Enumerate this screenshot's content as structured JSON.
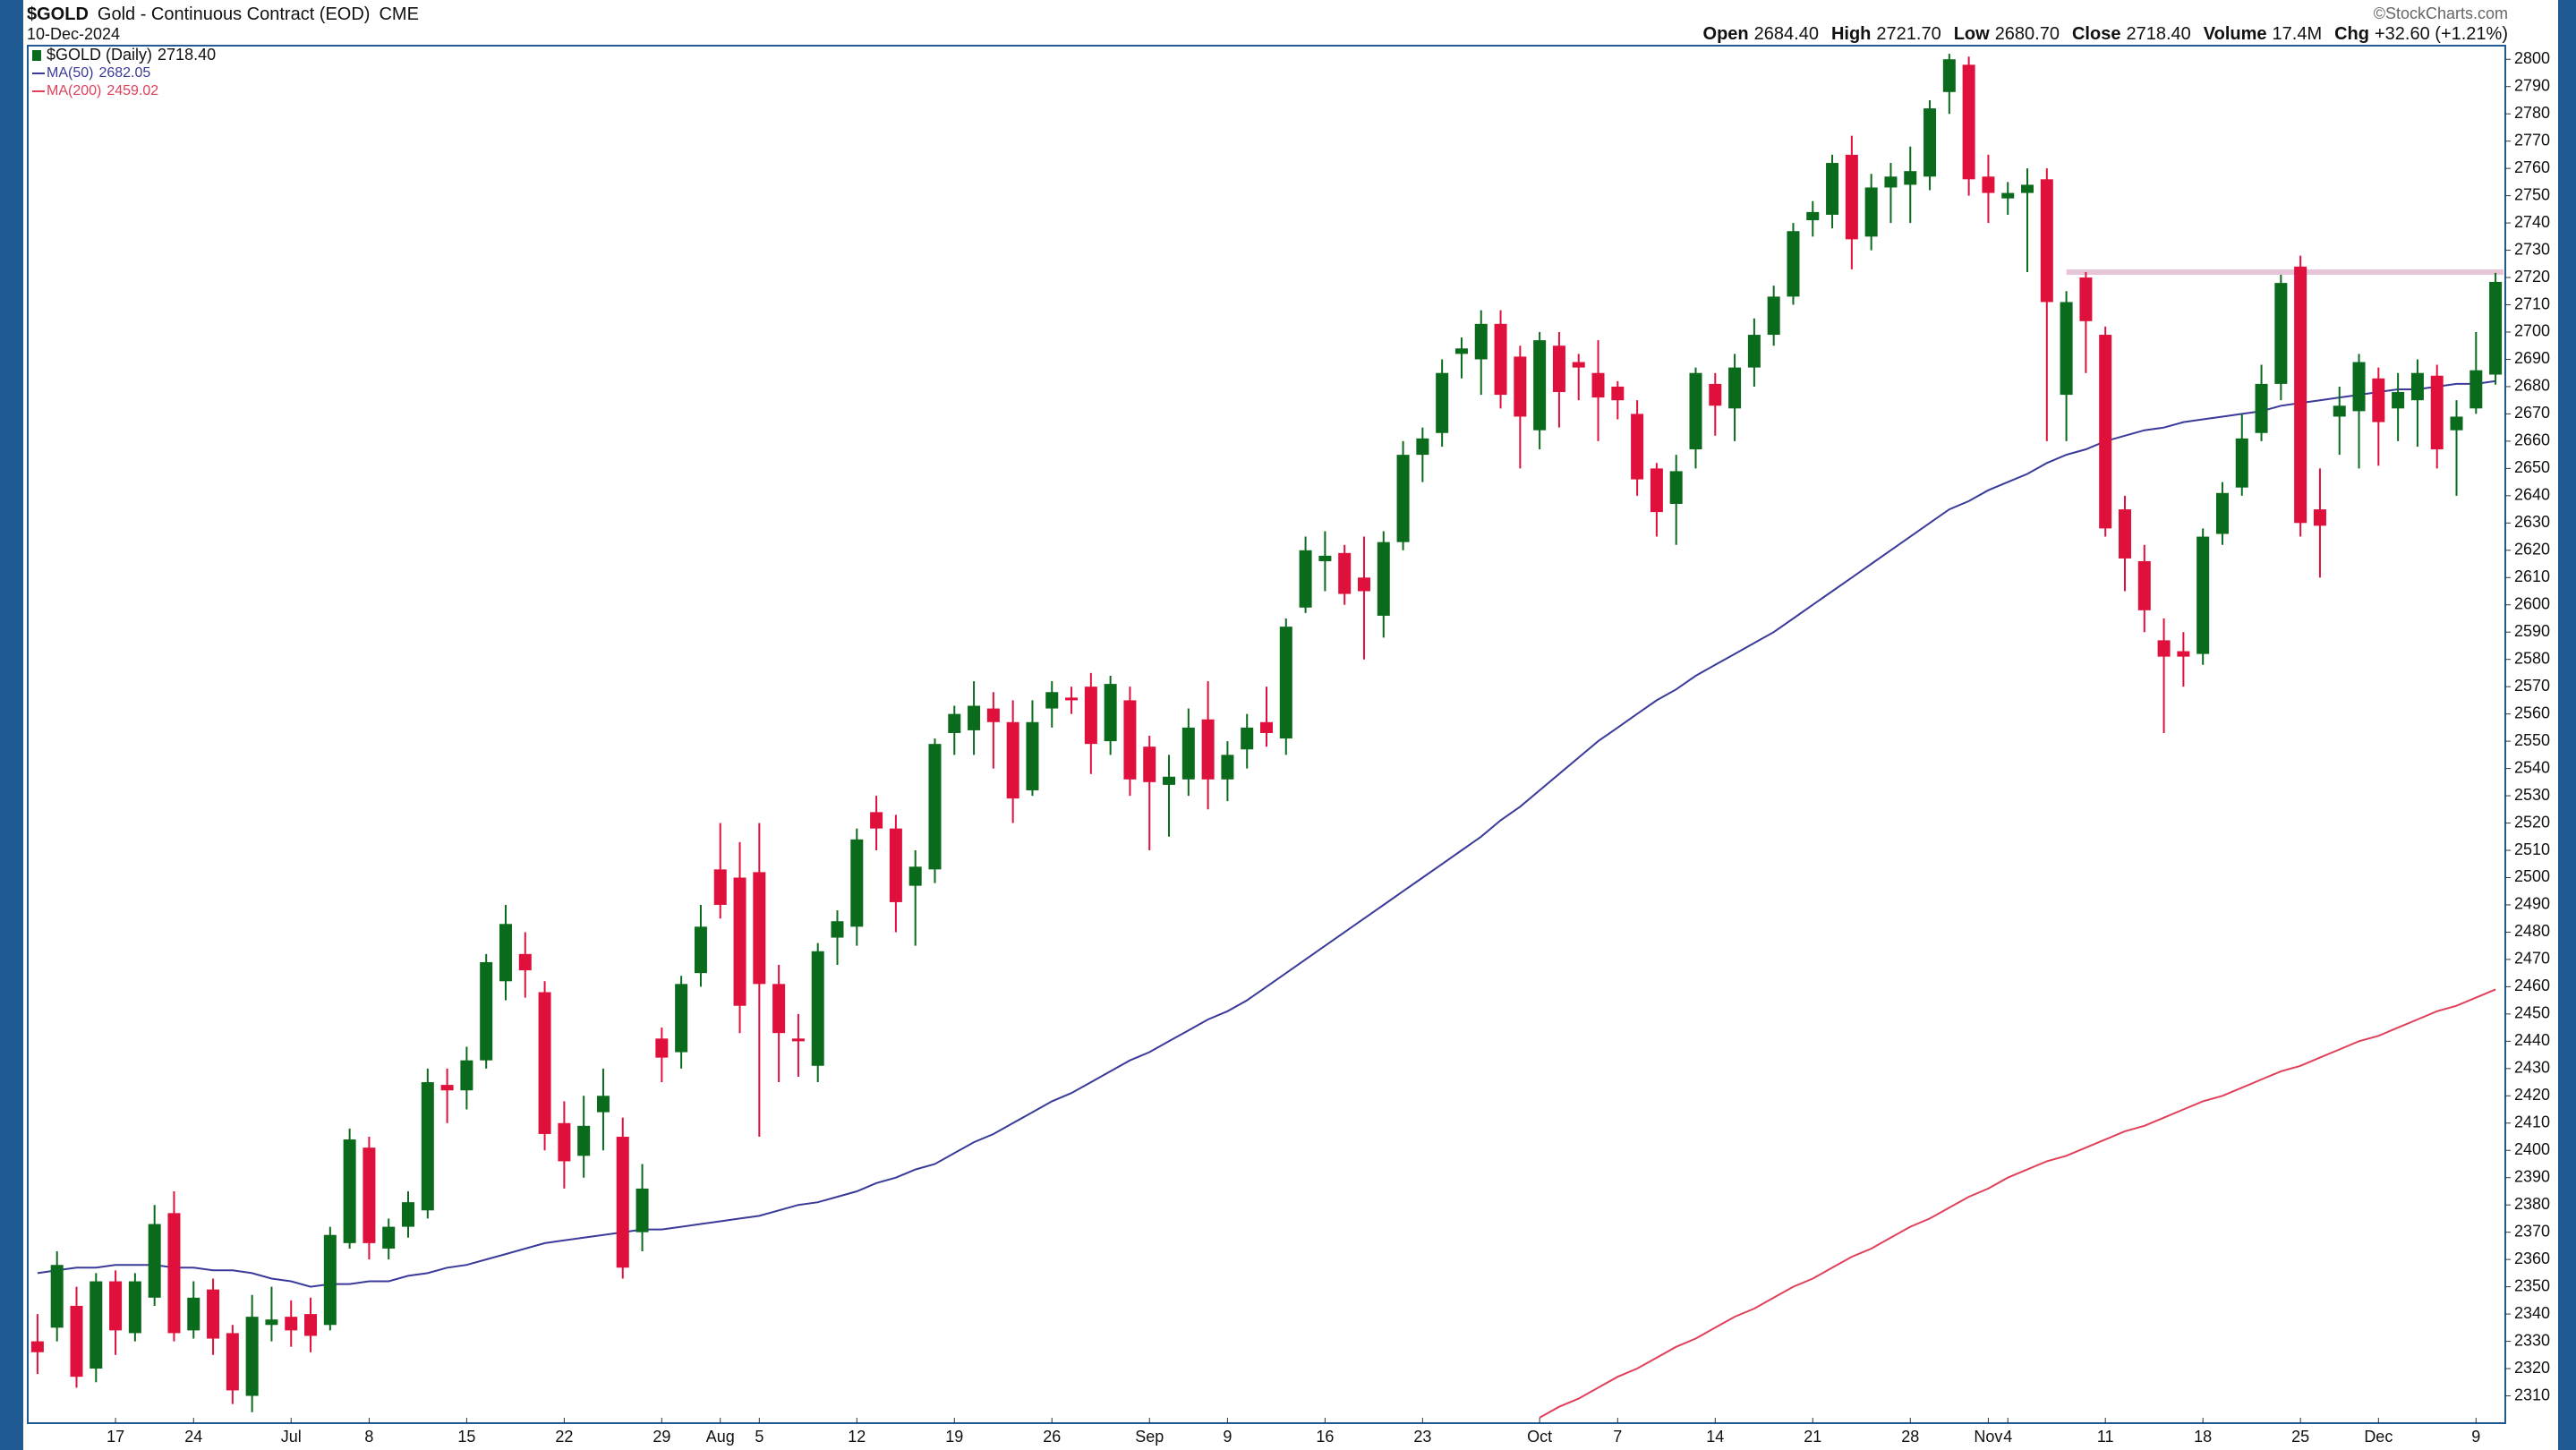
{
  "chart_data": {
    "type": "candlestick",
    "title": "$GOLD",
    "subtitle": "Gold - Continuous Contract (EOD)",
    "exchange": "CME",
    "date": "10-Dec-2024",
    "watermark": "©StockCharts.com",
    "header": [
      {
        "label": "Open",
        "value": "2684.40"
      },
      {
        "label": "High",
        "value": "2721.70"
      },
      {
        "label": "Low",
        "value": "2680.70"
      },
      {
        "label": "Close",
        "value": "2718.40"
      },
      {
        "label": "Volume",
        "value": "17.4M"
      },
      {
        "label": "Chg",
        "value": "+32.60 (+1.21%)"
      }
    ],
    "name": "$GOLD (Daily)",
    "last_label": "2718.40",
    "up_color": "#0b6b1c",
    "down_color": "#e0103c",
    "categories": [
      null,
      null,
      null,
      null,
      "17",
      null,
      null,
      null,
      "24",
      null,
      null,
      null,
      null,
      "Jul",
      null,
      null,
      null,
      "8",
      null,
      null,
      null,
      null,
      "15",
      null,
      null,
      null,
      null,
      "22",
      null,
      null,
      null,
      null,
      "29",
      null,
      null,
      "Aug",
      null,
      "5",
      null,
      null,
      null,
      null,
      "12",
      null,
      null,
      null,
      null,
      "19",
      null,
      null,
      null,
      null,
      "26",
      null,
      null,
      null,
      null,
      "Sep",
      null,
      null,
      null,
      "9",
      null,
      null,
      null,
      null,
      "16",
      null,
      null,
      null,
      null,
      "23",
      null,
      null,
      null,
      null,
      null,
      "Oct",
      null,
      null,
      null,
      "7",
      null,
      null,
      null,
      null,
      "14",
      null,
      null,
      null,
      null,
      "21",
      null,
      null,
      null,
      null,
      "28",
      null,
      null,
      null,
      "Nov",
      "4",
      null,
      null,
      null,
      null,
      "11",
      null,
      null,
      null,
      null,
      "18",
      null,
      null,
      null,
      null,
      "25",
      null,
      null,
      null,
      "Dec",
      null,
      null,
      null,
      null,
      "9",
      null
    ],
    "open": [
      2330,
      2335,
      2343,
      2320,
      2352,
      2333,
      2346,
      2377,
      2334,
      2349,
      2333,
      2310,
      2336,
      2339,
      2340,
      2336,
      2366,
      2401,
      2364,
      2372,
      2378,
      2424,
      2422,
      2433,
      2462,
      2472,
      2458,
      2410,
      2398,
      2414,
      2405,
      2370,
      2441,
      2436,
      2465,
      2503,
      2500,
      2502,
      2461,
      2441,
      2431,
      2478,
      2482,
      2524,
      2518,
      2497,
      2503,
      2553,
      2554,
      2562,
      2557,
      2532,
      2562,
      2566,
      2570,
      2550,
      2565,
      2548,
      2534,
      2536,
      2558,
      2536,
      2547,
      2557,
      2551,
      2599,
      2616,
      2619,
      2610,
      2596,
      2623,
      2655,
      2663,
      2692,
      2690,
      2703,
      2691,
      2664,
      2695,
      2689,
      2685,
      2680,
      2670,
      2650,
      2637,
      2657,
      2681,
      2672,
      2687,
      2699,
      2713,
      2741,
      2743,
      2765,
      2735,
      2753,
      2754,
      2757,
      2788,
      2798,
      2757,
      2749,
      2751,
      2756,
      2677,
      2720,
      2699,
      2635,
      2616,
      2587,
      2583,
      2582,
      2626,
      2643,
      2663,
      2681,
      2724,
      2635,
      2669,
      2671,
      2683,
      2672,
      2675,
      2684,
      2664,
      2672,
      2684.4
    ],
    "high": [
      2340,
      2363,
      2350,
      2355,
      2356,
      2355,
      2380,
      2385,
      2352,
      2353,
      2336,
      2347,
      2350,
      2345,
      2346,
      2372,
      2408,
      2405,
      2375,
      2385,
      2430,
      2430,
      2438,
      2472,
      2490,
      2480,
      2462,
      2418,
      2420,
      2430,
      2412,
      2395,
      2445,
      2464,
      2490,
      2520,
      2513,
      2520,
      2468,
      2450,
      2476,
      2488,
      2518,
      2530,
      2523,
      2510,
      2551,
      2563,
      2572,
      2568,
      2565,
      2565,
      2572,
      2570,
      2575,
      2574,
      2570,
      2552,
      2545,
      2562,
      2572,
      2550,
      2560,
      2570,
      2595,
      2625,
      2627,
      2622,
      2625,
      2627,
      2660,
      2665,
      2690,
      2698,
      2708,
      2708,
      2695,
      2700,
      2700,
      2692,
      2697,
      2682,
      2675,
      2652,
      2655,
      2687,
      2685,
      2692,
      2705,
      2717,
      2740,
      2748,
      2765,
      2772,
      2758,
      2762,
      2768,
      2785,
      2802,
      2801,
      2765,
      2755,
      2760,
      2760,
      2715,
      2722,
      2702,
      2640,
      2622,
      2595,
      2590,
      2628,
      2645,
      2670,
      2688,
      2721,
      2728,
      2650,
      2680,
      2692,
      2687,
      2685,
      2690,
      2688,
      2675,
      2700,
      2721.7
    ],
    "low": [
      2318,
      2330,
      2313,
      2315,
      2325,
      2330,
      2343,
      2330,
      2331,
      2325,
      2307,
      2304,
      2330,
      2328,
      2326,
      2334,
      2364,
      2360,
      2360,
      2368,
      2375,
      2410,
      2415,
      2430,
      2455,
      2456,
      2400,
      2386,
      2390,
      2400,
      2353,
      2363,
      2425,
      2430,
      2460,
      2485,
      2443,
      2405,
      2425,
      2427,
      2425,
      2468,
      2475,
      2510,
      2480,
      2475,
      2498,
      2545,
      2545,
      2540,
      2520,
      2530,
      2555,
      2560,
      2538,
      2545,
      2530,
      2510,
      2515,
      2530,
      2525,
      2528,
      2540,
      2548,
      2545,
      2597,
      2605,
      2600,
      2580,
      2588,
      2620,
      2645,
      2658,
      2683,
      2677,
      2672,
      2650,
      2657,
      2665,
      2675,
      2660,
      2668,
      2640,
      2625,
      2622,
      2650,
      2662,
      2660,
      2680,
      2695,
      2710,
      2735,
      2738,
      2723,
      2730,
      2740,
      2740,
      2752,
      2780,
      2750,
      2740,
      2743,
      2722,
      2660,
      2660,
      2685,
      2625,
      2605,
      2590,
      2553,
      2570,
      2578,
      2622,
      2640,
      2660,
      2675,
      2625,
      2610,
      2655,
      2650,
      2651,
      2660,
      2658,
      2650,
      2640,
      2670,
      2680.7
    ],
    "close": [
      2326,
      2358,
      2317,
      2352,
      2334,
      2352,
      2373,
      2333,
      2346,
      2331,
      2312,
      2339,
      2338,
      2334,
      2332,
      2369,
      2404,
      2366,
      2372,
      2381,
      2425,
      2422,
      2433,
      2469,
      2483,
      2466,
      2406,
      2396,
      2409,
      2420,
      2357,
      2386,
      2434,
      2461,
      2482,
      2490,
      2453,
      2461,
      2443,
      2440,
      2473,
      2484,
      2514,
      2518,
      2491,
      2504,
      2549,
      2560,
      2563,
      2557,
      2529,
      2557,
      2568,
      2565,
      2549,
      2571,
      2536,
      2535,
      2537,
      2555,
      2536,
      2545,
      2555,
      2553,
      2592,
      2620,
      2618,
      2604,
      2605,
      2623,
      2655,
      2661,
      2685,
      2694,
      2703,
      2677,
      2669,
      2697,
      2678,
      2687,
      2676,
      2675,
      2646,
      2634,
      2649,
      2685,
      2673,
      2687,
      2699,
      2713,
      2737,
      2744,
      2762,
      2734,
      2753,
      2757,
      2759,
      2782,
      2800,
      2756,
      2751,
      2751,
      2754,
      2711,
      2711,
      2704,
      2628,
      2617,
      2598,
      2581,
      2581,
      2625,
      2641,
      2661,
      2681,
      2718,
      2630,
      2629,
      2673,
      2689,
      2667,
      2678,
      2685,
      2657,
      2669,
      2686,
      2718.4
    ],
    "series": [
      {
        "name": "MA(50)",
        "last_label": "2682.05",
        "color": "#3a3a9a",
        "values": [
          2355,
          2356,
          2357,
          2357,
          2358,
          2358,
          2358,
          2357,
          2357,
          2356,
          2356,
          2355,
          2353,
          2352,
          2350,
          2351,
          2351,
          2352,
          2352,
          2354,
          2355,
          2357,
          2358,
          2360,
          2362,
          2364,
          2366,
          2367,
          2368,
          2369,
          2370,
          2371,
          2371,
          2372,
          2373,
          2374,
          2375,
          2376,
          2378,
          2380,
          2381,
          2383,
          2385,
          2388,
          2390,
          2393,
          2395,
          2399,
          2403,
          2406,
          2410,
          2414,
          2418,
          2421,
          2425,
          2429,
          2433,
          2436,
          2440,
          2444,
          2448,
          2451,
          2455,
          2460,
          2465,
          2470,
          2475,
          2480,
          2485,
          2490,
          2495,
          2500,
          2505,
          2510,
          2515,
          2521,
          2526,
          2532,
          2538,
          2544,
          2550,
          2555,
          2560,
          2565,
          2569,
          2574,
          2578,
          2582,
          2586,
          2590,
          2595,
          2600,
          2605,
          2610,
          2615,
          2620,
          2625,
          2630,
          2635,
          2638,
          2642,
          2645,
          2648,
          2652,
          2655,
          2657,
          2660,
          2662,
          2664,
          2665,
          2667,
          2668,
          2669,
          2670,
          2671,
          2673,
          2674,
          2675,
          2676,
          2677,
          2678,
          2679,
          2679,
          2680,
          2681,
          2681,
          2682.05
        ]
      },
      {
        "name": "MA(200)",
        "last_label": "2459.02",
        "color": "#e0405a",
        "values": [
          null,
          null,
          null,
          null,
          null,
          null,
          null,
          null,
          null,
          null,
          null,
          null,
          null,
          null,
          null,
          null,
          null,
          null,
          null,
          null,
          null,
          null,
          null,
          null,
          null,
          null,
          null,
          null,
          null,
          null,
          null,
          null,
          null,
          null,
          null,
          null,
          null,
          null,
          null,
          null,
          null,
          null,
          null,
          null,
          null,
          null,
          null,
          null,
          null,
          null,
          null,
          null,
          null,
          null,
          null,
          null,
          null,
          null,
          null,
          null,
          null,
          null,
          null,
          null,
          null,
          null,
          null,
          null,
          null,
          null,
          null,
          null,
          null,
          null,
          null,
          null,
          null,
          2302,
          2306,
          2309,
          2313,
          2317,
          2320,
          2324,
          2328,
          2331,
          2335,
          2339,
          2342,
          2346,
          2350,
          2353,
          2357,
          2361,
          2364,
          2368,
          2372,
          2375,
          2379,
          2383,
          2386,
          2390,
          2393,
          2396,
          2398,
          2401,
          2404,
          2407,
          2409,
          2412,
          2415,
          2418,
          2420,
          2423,
          2426,
          2429,
          2431,
          2434,
          2437,
          2440,
          2442,
          2445,
          2448,
          2451,
          2453,
          2456,
          2459.02
        ]
      }
    ],
    "hline": {
      "value": 2722,
      "color": "#e8c4d8"
    },
    "ylim": [
      2300,
      2805
    ],
    "yticks": [
      2310,
      2320,
      2330,
      2340,
      2350,
      2360,
      2370,
      2380,
      2390,
      2400,
      2410,
      2420,
      2430,
      2440,
      2450,
      2460,
      2470,
      2480,
      2490,
      2500,
      2510,
      2520,
      2530,
      2540,
      2550,
      2560,
      2570,
      2580,
      2590,
      2600,
      2610,
      2620,
      2630,
      2640,
      2650,
      2660,
      2670,
      2680,
      2690,
      2700,
      2710,
      2720,
      2730,
      2740,
      2750,
      2760,
      2770,
      2780,
      2790,
      2800
    ],
    "grid": false
  }
}
